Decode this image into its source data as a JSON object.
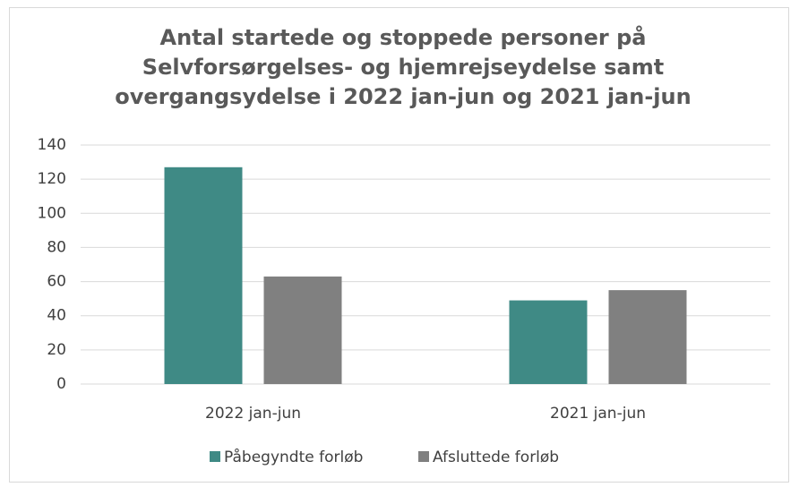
{
  "chart_data": {
    "type": "bar",
    "title": "Antal startede og stoppede personer på Selvforsørgelses- og hjemrejseydelse samt overgangsydelse i 2022 jan-jun og 2021 jan-jun",
    "categories": [
      "2022 jan-jun",
      "2021 jan-jun"
    ],
    "series": [
      {
        "name": "Påbegyndte forløb",
        "color": "#3f8a85",
        "values": [
          127,
          49
        ]
      },
      {
        "name": "Afsluttede forløb",
        "color": "#808080",
        "values": [
          63,
          55
        ]
      }
    ],
    "ylim": [
      0,
      140
    ],
    "yticks": [
      0,
      20,
      40,
      60,
      80,
      100,
      120,
      140
    ],
    "grid": true,
    "legend": "bottom"
  }
}
